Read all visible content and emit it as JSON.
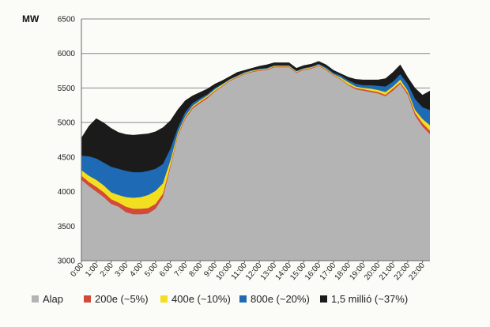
{
  "chart_data": {
    "type": "area",
    "ylabel": "MW",
    "ylim": [
      3000,
      6500
    ],
    "yticks": [
      3000,
      3500,
      4000,
      4500,
      5000,
      5500,
      6000,
      6500
    ],
    "grid": true,
    "legend_position": "bottom",
    "x": [
      "0:00",
      "0:30",
      "1:00",
      "1:30",
      "2:00",
      "2:30",
      "3:00",
      "3:30",
      "4:00",
      "4:30",
      "5:00",
      "5:30",
      "6:00",
      "6:30",
      "7:00",
      "7:30",
      "8:00",
      "8:30",
      "9:00",
      "9:30",
      "10:00",
      "10:30",
      "11:00",
      "11:30",
      "12:00",
      "12:30",
      "13:00",
      "13:30",
      "14:00",
      "14:30",
      "15:00",
      "15:30",
      "16:00",
      "16:30",
      "17:00",
      "17:30",
      "18:00",
      "18:30",
      "19:00",
      "19:30",
      "20:00",
      "20:30",
      "21:00",
      "21:30",
      "22:00",
      "22:30",
      "23:00",
      "23:30"
    ],
    "xtick_labels": [
      "0:00",
      "1:00",
      "2:00",
      "3:00",
      "4:00",
      "5:00",
      "6:00",
      "7:00",
      "8:00",
      "9:00",
      "10:00",
      "11:00",
      "12:00",
      "13:00",
      "14:00",
      "15:00",
      "16:00",
      "17:00",
      "18:00",
      "19:00",
      "20:00",
      "21:00",
      "22:00",
      "23:00"
    ],
    "series": [
      {
        "name": "Alap",
        "color": "#b4b4b4",
        "cumulative": [
          4170,
          4080,
          4000,
          3920,
          3820,
          3780,
          3700,
          3670,
          3670,
          3680,
          3750,
          3920,
          4350,
          4800,
          5050,
          5200,
          5280,
          5350,
          5450,
          5520,
          5600,
          5650,
          5700,
          5730,
          5750,
          5760,
          5800,
          5800,
          5800,
          5720,
          5760,
          5780,
          5820,
          5760,
          5680,
          5620,
          5540,
          5480,
          5460,
          5440,
          5420,
          5380,
          5460,
          5560,
          5400,
          5100,
          4940,
          4830
        ],
        "legend_label": "Alap"
      },
      {
        "name": "200e (~5%)",
        "color": "#d24a3a",
        "cumulative": [
          4230,
          4140,
          4070,
          3990,
          3890,
          3840,
          3780,
          3750,
          3750,
          3760,
          3820,
          3970,
          4380,
          4820,
          5070,
          5220,
          5300,
          5370,
          5460,
          5530,
          5610,
          5660,
          5710,
          5740,
          5760,
          5770,
          5810,
          5810,
          5810,
          5730,
          5770,
          5790,
          5830,
          5770,
          5690,
          5630,
          5550,
          5500,
          5480,
          5460,
          5440,
          5400,
          5490,
          5580,
          5430,
          5140,
          4990,
          4880
        ],
        "legend_label": "200e (~5%)"
      },
      {
        "name": "400e (~10%)",
        "color": "#f2e020",
        "cumulative": [
          4310,
          4230,
          4170,
          4090,
          3990,
          3950,
          3920,
          3910,
          3920,
          3950,
          4010,
          4120,
          4450,
          4850,
          5090,
          5240,
          5320,
          5390,
          5480,
          5550,
          5620,
          5670,
          5720,
          5750,
          5770,
          5780,
          5820,
          5820,
          5820,
          5740,
          5780,
          5800,
          5840,
          5780,
          5700,
          5650,
          5580,
          5520,
          5500,
          5490,
          5470,
          5440,
          5520,
          5620,
          5460,
          5180,
          5050,
          4960
        ],
        "legend_label": "400e (~10%)"
      },
      {
        "name": "800e (~20%)",
        "color": "#1e6ab4",
        "cumulative": [
          4520,
          4510,
          4480,
          4420,
          4360,
          4330,
          4300,
          4280,
          4280,
          4300,
          4330,
          4400,
          4620,
          4920,
          5150,
          5280,
          5350,
          5410,
          5500,
          5560,
          5630,
          5680,
          5730,
          5760,
          5780,
          5790,
          5830,
          5830,
          5830,
          5750,
          5790,
          5810,
          5850,
          5800,
          5720,
          5680,
          5610,
          5560,
          5540,
          5540,
          5530,
          5520,
          5590,
          5700,
          5560,
          5340,
          5220,
          5180
        ],
        "legend_label": "800e (~20%)"
      },
      {
        "name": "1,5 millió (~37%)",
        "color": "#1b1b1b",
        "cumulative": [
          4780,
          4950,
          5060,
          5000,
          4920,
          4860,
          4830,
          4820,
          4830,
          4840,
          4870,
          4930,
          5030,
          5190,
          5320,
          5390,
          5440,
          5490,
          5560,
          5610,
          5670,
          5730,
          5760,
          5790,
          5820,
          5840,
          5870,
          5870,
          5870,
          5790,
          5830,
          5850,
          5890,
          5840,
          5760,
          5710,
          5660,
          5630,
          5620,
          5620,
          5620,
          5640,
          5730,
          5840,
          5660,
          5500,
          5400,
          5460
        ],
        "legend_label": "1,5 millió (~37%)"
      }
    ]
  }
}
